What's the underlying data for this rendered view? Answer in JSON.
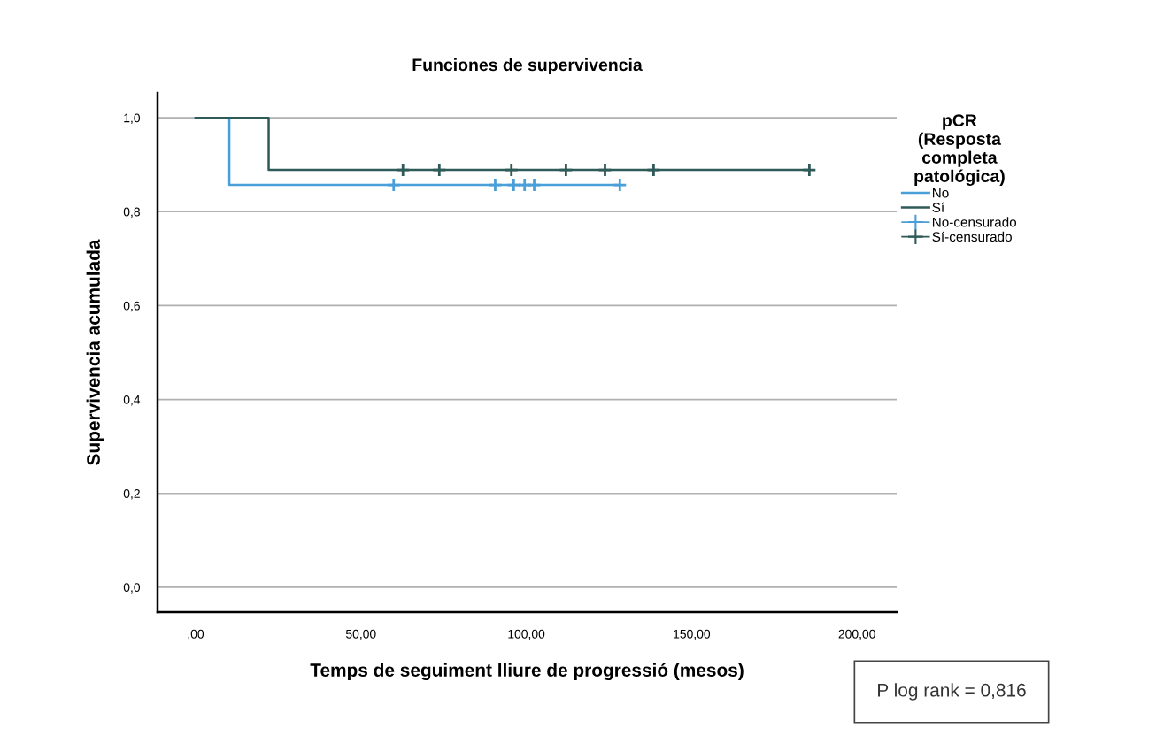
{
  "chart_data": {
    "type": "step",
    "title": "Funciones de supervivencia",
    "xlabel": "Temps de seguiment lliure de progressió (mesos)",
    "ylabel": "Supervivencia acumulada",
    "legend_title": "pCR\n(Resposta\ncompleta\npatológica)",
    "series": [
      {
        "name": "No",
        "marker": "none",
        "color": "#4a9fd8",
        "x": [
          0,
          10.2,
          128.3
        ],
        "values": [
          1.0,
          0.857,
          0.857
        ]
      },
      {
        "name": "Sí",
        "marker": "none",
        "color": "#2e5a57",
        "x": [
          0,
          22.1,
          185.6
        ],
        "values": [
          1.0,
          0.889,
          0.889
        ]
      },
      {
        "name": "No-censurado",
        "type": "scatter",
        "marker": "cross",
        "color": "#4a9fd8",
        "x": [
          59.9,
          90.6,
          96.2,
          99.5,
          102.4,
          128.3
        ],
        "values": [
          0.857,
          0.857,
          0.857,
          0.857,
          0.857,
          0.857
        ]
      },
      {
        "name": "Sí-censurado",
        "type": "scatter",
        "marker": "cross",
        "color": "#2e5a57",
        "x": [
          62.7,
          73.7,
          95.5,
          112,
          123.8,
          138.5,
          185.6
        ],
        "values": [
          0.889,
          0.889,
          0.889,
          0.889,
          0.889,
          0.889,
          0.889
        ]
      }
    ],
    "xlim": [
      -11.5,
      212
    ],
    "xticks": [
      {
        "value": 0,
        "label": ",00"
      },
      {
        "value": 50,
        "label": "50,00"
      },
      {
        "value": 100,
        "label": "100,00"
      },
      {
        "value": 150,
        "label": "150,00"
      },
      {
        "value": 200,
        "label": "200,00"
      }
    ],
    "ylim": [
      -0.053,
      1.053
    ],
    "yticks": [
      {
        "value": 0,
        "label": "0,0"
      },
      {
        "value": 0.2,
        "label": "0,2"
      },
      {
        "value": 0.4,
        "label": "0,4"
      },
      {
        "value": 0.6,
        "label": "0,6"
      },
      {
        "value": 0.8,
        "label": "0,8"
      },
      {
        "value": 1.0,
        "label": "1,0"
      }
    ],
    "grid": "y",
    "legend": "right",
    "annotations": [
      "P log rank = 0,816"
    ]
  }
}
